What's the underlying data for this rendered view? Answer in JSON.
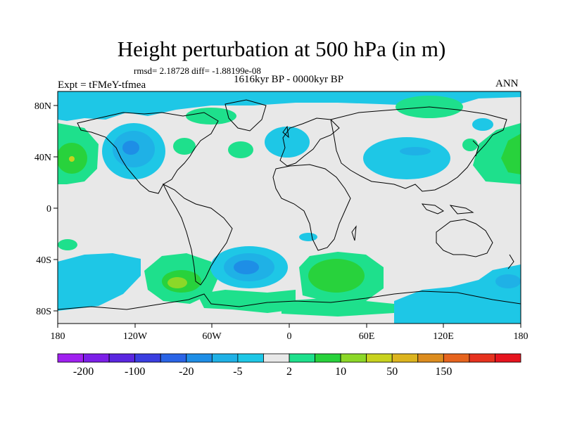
{
  "header": {
    "title": "Height perturbation at 500 hPa (in m)",
    "stats": "rmsd= 2.18728 diff= -1.88199e-08",
    "period": "1616kyr BP - 0000kyr BP",
    "experiment": "Expt = tFMeY-tfmea",
    "season": "ANN"
  },
  "axes": {
    "lat_labels": [
      "80N",
      "40N",
      "0",
      "40S",
      "80S"
    ],
    "lon_labels": [
      "180",
      "120W",
      "60W",
      "0",
      "60E",
      "120E",
      "180"
    ]
  },
  "colorbar": {
    "labels": [
      "-200",
      "-100",
      "-20",
      "-5",
      "2",
      "10",
      "50",
      "150"
    ],
    "colors": [
      "#a020f0",
      "#7c1fe8",
      "#5a26e0",
      "#3a3ee0",
      "#2a64e6",
      "#1e8ee6",
      "#1fb1e6",
      "#1ec7e6",
      "#e8e8e8",
      "#1ee08c",
      "#28d23c",
      "#8cd828",
      "#c8d21e",
      "#dcb41e",
      "#dc8c1e",
      "#e6641e",
      "#e6321e",
      "#e6141e"
    ]
  },
  "colors": {
    "background": "#e8e8e8",
    "cyan": "#1ec7e6",
    "blue": "#1fb1e6",
    "deep_blue": "#1e8ee6",
    "teal_green": "#1ee08c",
    "green": "#28d23c",
    "yellow_green": "#c8d21e"
  }
}
